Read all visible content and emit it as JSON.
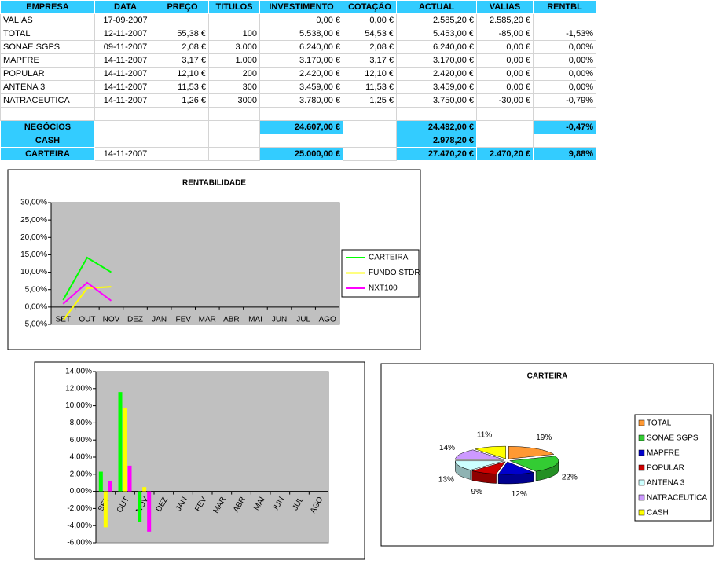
{
  "table": {
    "header": [
      "EMPRESA",
      "DATA",
      "PREÇO",
      "TITULOS",
      "INVESTIMENTO",
      "COTAÇÃO",
      "ACTUAL",
      "VALIAS",
      "RENTBL"
    ],
    "rows": [
      [
        "VALIAS",
        "17-09-2007",
        null,
        null,
        "0,00 €",
        "0,00 €",
        "2.585,20 €",
        "2.585,20 €",
        null
      ],
      [
        "TOTAL",
        "12-11-2007",
        "55,38 €",
        "100",
        "5.538,00 €",
        "54,53 €",
        "5.453,00 €",
        "-85,00 €",
        "-1,53%"
      ],
      [
        "SONAE SGPS",
        "09-11-2007",
        "2,08 €",
        "3.000",
        "6.240,00 €",
        "2,08 €",
        "6.240,00 €",
        "0,00 €",
        "0,00%"
      ],
      [
        "MAPFRE",
        "14-11-2007",
        "3,17 €",
        "1.000",
        "3.170,00 €",
        "3,17 €",
        "3.170,00 €",
        "0,00 €",
        "0,00%"
      ],
      [
        "POPULAR",
        "14-11-2007",
        "12,10 €",
        "200",
        "2.420,00 €",
        "12,10 €",
        "2.420,00 €",
        "0,00 €",
        "0,00%"
      ],
      [
        "ANTENA 3",
        "14-11-2007",
        "11,53 €",
        "300",
        "3.459,00 €",
        "11,53 €",
        "3.459,00 €",
        "0,00 €",
        "0,00%"
      ],
      [
        "NATRACEUTICA",
        "14-11-2007",
        "1,26 €",
        "3000",
        "3.780,00 €",
        "1,25 €",
        "3.750,00 €",
        "-30,00 €",
        "-0,79%"
      ],
      [
        null,
        null,
        null,
        null,
        null,
        null,
        null,
        null,
        null
      ],
      [
        "NEGÓCIOS",
        null,
        null,
        null,
        "24.607,00 €",
        null,
        "24.492,00 €",
        null,
        "-0,47%"
      ],
      [
        "CASH",
        null,
        null,
        null,
        null,
        null,
        "2.978,20 €",
        null,
        null
      ],
      [
        "CARTEIRA",
        "14-11-2007",
        null,
        null,
        "25.000,00 €",
        null,
        "27.470,20 €",
        "2.470,20 €",
        "9,88%"
      ]
    ]
  },
  "chart_data": [
    {
      "type": "line",
      "title": "RENTABILIDADE",
      "categories": [
        "SET",
        "OUT",
        "NOV",
        "DEZ",
        "JAN",
        "FEV",
        "MAR",
        "ABR",
        "MAI",
        "JUN",
        "JUL",
        "AGO"
      ],
      "ylim": [
        -5,
        30
      ],
      "yticks": [
        {
          "value": -5,
          "label": "-5,00%"
        },
        {
          "value": 0,
          "label": "0,00%"
        },
        {
          "value": 5,
          "label": "5,00%"
        },
        {
          "value": 10,
          "label": "10,00%"
        },
        {
          "value": 15,
          "label": "15,00%"
        },
        {
          "value": 20,
          "label": "20,00%"
        },
        {
          "value": 25,
          "label": "25,00%"
        },
        {
          "value": 30,
          "label": "30,00%"
        }
      ],
      "grid": false,
      "legend": "right",
      "series": [
        {
          "name": "CARTEIRA",
          "color": "#00ff00",
          "values": [
            2,
            14.2,
            10,
            null,
            null,
            null,
            null,
            null,
            null,
            null,
            null,
            null
          ]
        },
        {
          "name": "FUNDO STDR",
          "color": "#ffff00",
          "values": [
            -3.8,
            5.4,
            5.8,
            null,
            null,
            null,
            null,
            null,
            null,
            null,
            null,
            null
          ]
        },
        {
          "name": "NXT100",
          "color": "#ff00ff",
          "values": [
            0.9,
            7,
            1.8,
            null,
            null,
            null,
            null,
            null,
            null,
            null,
            null,
            null
          ]
        }
      ]
    },
    {
      "type": "bar",
      "categories": [
        "SET",
        "OUT",
        "NOV",
        "DEZ",
        "JAN",
        "FEV",
        "MAR",
        "ABR",
        "MAI",
        "JUN",
        "JUL",
        "AGO"
      ],
      "ylim": [
        -6,
        14
      ],
      "yticks": [
        {
          "value": -6,
          "label": "-6,00%"
        },
        {
          "value": -4,
          "label": "-4,00%"
        },
        {
          "value": -2,
          "label": "-2,00%"
        },
        {
          "value": 0,
          "label": "0,00%"
        },
        {
          "value": 2,
          "label": "2,00%"
        },
        {
          "value": 4,
          "label": "4,00%"
        },
        {
          "value": 6,
          "label": "6,00%"
        },
        {
          "value": 8,
          "label": "8,00%"
        },
        {
          "value": 10,
          "label": "10,00%"
        },
        {
          "value": 12,
          "label": "12,00%"
        },
        {
          "value": 14,
          "label": "14,00%"
        }
      ],
      "grid": false,
      "series": [
        {
          "color": "#00ff00",
          "values": [
            2.3,
            11.6,
            -3.6,
            null,
            null,
            null,
            null,
            null,
            null,
            null,
            null,
            null
          ]
        },
        {
          "color": "#ffff00",
          "values": [
            -4.2,
            9.7,
            0.5,
            null,
            null,
            null,
            null,
            null,
            null,
            null,
            null,
            null
          ]
        },
        {
          "color": "#ff00ff",
          "values": [
            1.2,
            3,
            -4.7,
            null,
            null,
            null,
            null,
            null,
            null,
            null,
            null,
            null
          ]
        }
      ]
    },
    {
      "type": "pie",
      "title": "CARTEIRA",
      "categories": [
        "TOTAL",
        "SONAE SGPS",
        "MAPFRE",
        "POPULAR",
        "ANTENA 3",
        "NATRACEUTICA",
        "CASH"
      ],
      "values": [
        19,
        22,
        12,
        9,
        13,
        14,
        11
      ],
      "value_labels": [
        "19%",
        "22%",
        "12%",
        "9%",
        "13%",
        "14%",
        "11%"
      ],
      "colors": [
        "#ff9933",
        "#33cc33",
        "#0000cc",
        "#cc0000",
        "#ccffff",
        "#cc99ff",
        "#ffff00"
      ],
      "legend": "right"
    }
  ]
}
